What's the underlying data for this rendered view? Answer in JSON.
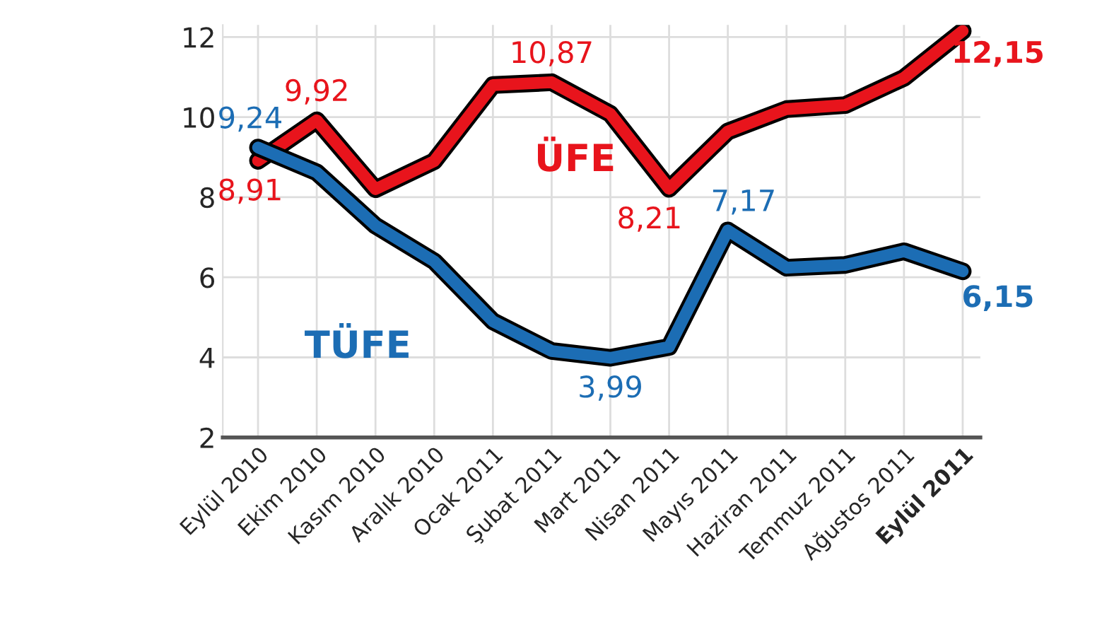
{
  "chart_data": {
    "type": "line",
    "categories": [
      "Eylül 2010",
      "Ekim 2010",
      "Kasım 2010",
      "Aralık 2010",
      "Ocak 2011",
      "Şubat 2011",
      "Mart 2011",
      "Nisan 2011",
      "Mayıs 2011",
      "Haziran 2011",
      "Temmuz 2011",
      "Ağustos 2011",
      "Eylül 2011"
    ],
    "series": [
      {
        "name": "ÜFE",
        "color": "#e8141c",
        "values": [
          8.91,
          9.92,
          8.2,
          8.9,
          10.8,
          10.87,
          10.08,
          8.21,
          9.64,
          10.2,
          10.3,
          10.98,
          12.15
        ],
        "value_labels": [
          "8,91",
          "9,92",
          null,
          null,
          null,
          "10,87",
          null,
          "8,21",
          null,
          null,
          null,
          null,
          "12,15"
        ]
      },
      {
        "name": "TÜFE",
        "color": "#1c6db4",
        "values": [
          9.24,
          8.62,
          7.29,
          6.4,
          4.9,
          4.16,
          3.99,
          4.26,
          7.17,
          6.24,
          6.31,
          6.65,
          6.15
        ],
        "value_labels": [
          "9,24",
          null,
          null,
          null,
          null,
          null,
          "3,99",
          null,
          "7,17",
          null,
          null,
          null,
          "6,15"
        ]
      }
    ],
    "ylim": [
      2,
      12.3
    ],
    "yticks": [
      2,
      4,
      6,
      8,
      10,
      12
    ],
    "grid": true,
    "legend": false
  }
}
